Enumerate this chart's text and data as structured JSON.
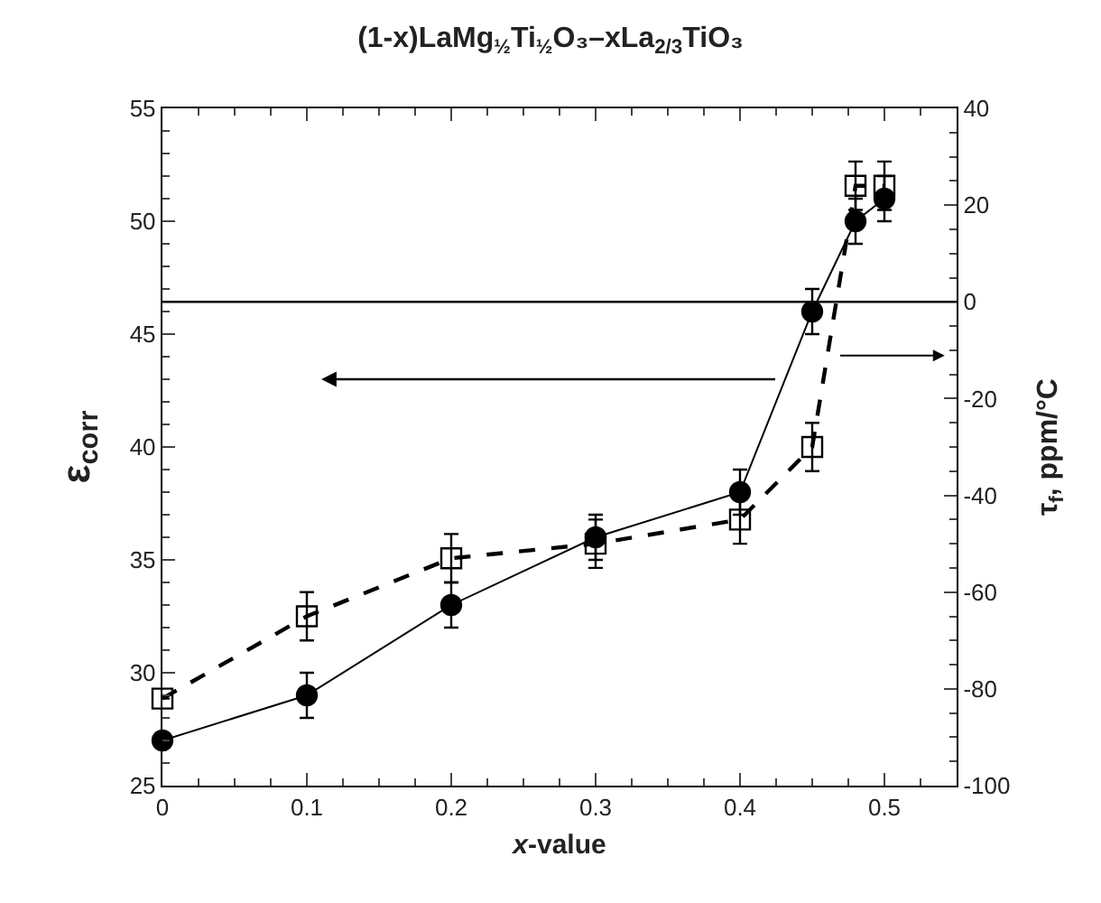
{
  "chart_data": {
    "type": "line",
    "title": "(1-x)LaMg$_{½}$Ti$_{½}$O₃–xLa$_{2/3}$TiO₃",
    "xlabel": "x-value",
    "ylabel": "ε$_{corr}$",
    "y2label": "τ$_{f}$, ppm/°C",
    "x": [
      0,
      0.1,
      0.2,
      0.3,
      0.4,
      0.45,
      0.48,
      0.5
    ],
    "series": [
      {
        "color": "#000000",
        "marker": "circle",
        "line_style": "solid",
        "values": [
          27,
          29,
          33,
          36,
          38,
          46,
          50,
          51
        ],
        "errors": [
          null,
          1,
          1,
          1,
          1,
          1,
          1,
          1
        ]
      },
      {
        "color": "#000000",
        "marker": "square",
        "line_style": "dashed",
        "axis": "y2",
        "values": [
          -82,
          -65,
          -53,
          -50,
          -45,
          -30,
          24,
          24
        ],
        "errors": [
          null,
          5,
          5,
          5,
          5,
          5,
          5,
          5
        ]
      }
    ],
    "xlim": [
      0,
      0.55
    ],
    "xticks": [
      0,
      0.1,
      0.2,
      0.3,
      0.4,
      0.5
    ],
    "ylim": [
      25,
      55
    ],
    "yticks": [
      25,
      30,
      35,
      40,
      45,
      50,
      55
    ],
    "y2lim": [
      -100,
      40
    ],
    "y2ticks": [
      -100,
      -80,
      -60,
      -40,
      -20,
      0,
      20,
      40
    ],
    "ref_lines": [
      {
        "axis": "y2",
        "value": 0,
        "color": "#000000",
        "line_style": "solid"
      }
    ],
    "legend": false
  }
}
